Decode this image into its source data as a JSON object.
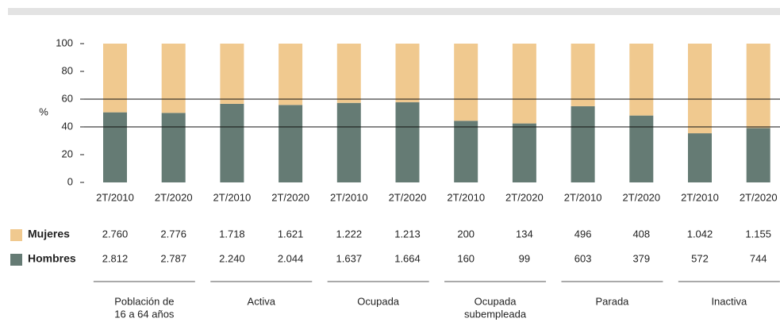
{
  "chart_data": {
    "type": "stacked_bar_percent",
    "y_label": "%",
    "categories": [
      "2T/2010",
      "2T/2020",
      "2T/2010",
      "2T/2020",
      "2T/2010",
      "2T/2020",
      "2T/2010",
      "2T/2020",
      "2T/2010",
      "2T/2020",
      "2T/2010",
      "2T/2020"
    ],
    "groups": [
      [
        "Población de",
        "16 a 64 años"
      ],
      [
        "Activa"
      ],
      [
        "Ocupada"
      ],
      [
        "Ocupada",
        "subempleada"
      ],
      [
        "Parada"
      ],
      [
        "Inactiva"
      ]
    ],
    "series": [
      {
        "name": "Hombres",
        "color": "#657b74",
        "values": [
          50.5,
          50.1,
          56.6,
          55.8,
          57.3,
          57.8,
          44.4,
          42.5,
          54.9,
          48.2,
          35.4,
          39.2
        ],
        "table": [
          "2.812",
          "2.787",
          "2.240",
          "2.044",
          "1.637",
          "1.664",
          "160",
          "99",
          "603",
          "379",
          "572",
          "744"
        ]
      },
      {
        "name": "Mujeres",
        "color": "#f0c98f",
        "values": [
          49.5,
          49.9,
          43.4,
          44.2,
          42.7,
          42.2,
          55.6,
          57.5,
          45.1,
          51.8,
          64.6,
          60.8
        ],
        "table": [
          "2.760",
          "2.776",
          "1.718",
          "1.621",
          "1.222",
          "1.213",
          "200",
          "134",
          "496",
          "408",
          "1.042",
          "1.155"
        ]
      }
    ],
    "ylim": [
      0,
      100
    ],
    "yticks": [
      0,
      20,
      40,
      60,
      80,
      100
    ],
    "reference_lines": [
      40,
      60
    ]
  }
}
